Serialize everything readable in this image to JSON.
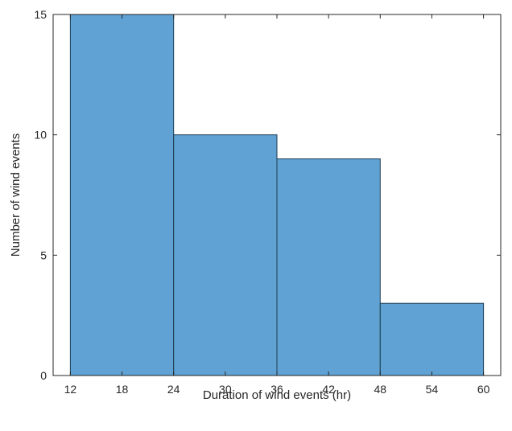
{
  "chart_data": {
    "type": "bar",
    "bins": [
      {
        "start": 12,
        "end": 24,
        "count": 15
      },
      {
        "start": 24,
        "end": 36,
        "count": 10
      },
      {
        "start": 36,
        "end": 48,
        "count": 9
      },
      {
        "start": 48,
        "end": 60,
        "count": 3
      }
    ],
    "xlabel": "Duration of wind events (hr)",
    "ylabel": "Number of wind events",
    "xlim": [
      10,
      62
    ],
    "ylim": [
      0,
      15
    ],
    "xticks": [
      12,
      18,
      24,
      30,
      36,
      42,
      48,
      54,
      60
    ],
    "yticks": [
      0,
      5,
      10,
      15
    ],
    "grid": false,
    "colors": {
      "bar_fill": "#5fa2d3",
      "bar_edge": "#1f3c52",
      "axis": "#262626"
    }
  }
}
